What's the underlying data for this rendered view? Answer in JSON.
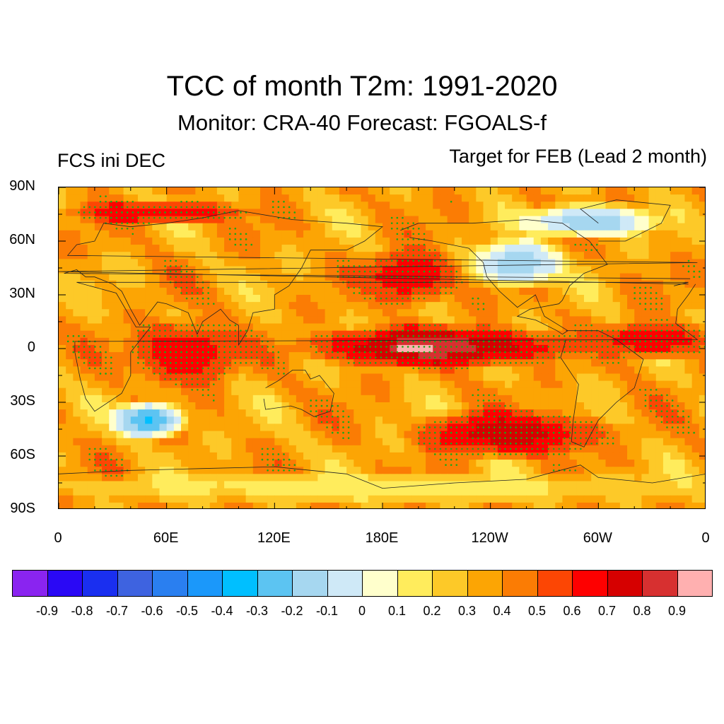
{
  "figure": {
    "title": "TCC of month T2m: 1991-2020",
    "subtitle": "Monitor: CRA-40   Forecast: FGOALS-f",
    "left_label": "FCS ini DEC",
    "right_label": "Target for FEB (Lead 2 month)"
  },
  "chart_data": {
    "type": "heatmap",
    "variable": "TCC of month T2m",
    "period": "1991-2020",
    "projection": "cylindrical equidistant",
    "lon_range": [
      0,
      360
    ],
    "lat_range": [
      -90,
      90
    ],
    "y_ticks": [
      "90N",
      "60N",
      "30N",
      "0",
      "30S",
      "60S",
      "90S"
    ],
    "x_ticks": [
      "0",
      "60E",
      "120E",
      "180E",
      "120W",
      "60W",
      "0"
    ],
    "colorbar": {
      "labels": [
        "-0.9",
        "-0.8",
        "-0.7",
        "-0.6",
        "-0.5",
        "-0.4",
        "-0.3",
        "-0.2",
        "-0.1",
        "0",
        "0.1",
        "0.2",
        "0.3",
        "0.4",
        "0.5",
        "0.6",
        "0.7",
        "0.8",
        "0.9"
      ],
      "colors": [
        "#8a24f0",
        "#2a08f5",
        "#1a2ff0",
        "#3e63e0",
        "#2a7ff0",
        "#1b98fa",
        "#00bfff",
        "#5cc4f2",
        "#a6d7f0",
        "#cfe9f7",
        "#ffffcc",
        "#ffec5c",
        "#fdc928",
        "#fca504",
        "#fb7c04",
        "#fc4604",
        "#fe0000",
        "#d60000",
        "#d73030",
        "#ffb0b0"
      ]
    },
    "stipple_color": "#1aa81a",
    "features": [
      {
        "region": "Tropical Pacific",
        "lon": [
          140,
          280
        ],
        "lat": [
          -10,
          12
        ],
        "value": 0.85
      },
      {
        "region": "Central equatorial Pacific",
        "lon": [
          185,
          210
        ],
        "lat": [
          -3,
          3
        ],
        "value": 0.95
      },
      {
        "region": "Tropical Atlantic",
        "lon": [
          300,
          360
        ],
        "lat": [
          -5,
          15
        ],
        "value": 0.7
      },
      {
        "region": "Indian Ocean",
        "lon": [
          40,
          100
        ],
        "lat": [
          -20,
          15
        ],
        "value": 0.7
      },
      {
        "region": "North Pacific",
        "lon": [
          170,
          220
        ],
        "lat": [
          25,
          55
        ],
        "value": 0.7
      },
      {
        "region": "South Pacific",
        "lon": [
          200,
          300
        ],
        "lat": [
          -60,
          -35
        ],
        "value": 0.75
      },
      {
        "region": "Arctic North Atlantic",
        "lon": [
          10,
          100
        ],
        "lat": [
          70,
          82
        ],
        "value": 0.7
      },
      {
        "region": "South Indian Ocean",
        "lon": [
          30,
          70
        ],
        "lat": [
          -50,
          -30
        ],
        "value": -0.3
      },
      {
        "region": "North America",
        "lon": [
          230,
          280
        ],
        "lat": [
          35,
          60
        ],
        "value": -0.2
      },
      {
        "region": "Greenland / Canadian Arctic",
        "lon": [
          260,
          330
        ],
        "lat": [
          62,
          80
        ],
        "value": -0.2
      },
      {
        "region": "Antarctica margin",
        "lon": [
          0,
          360
        ],
        "lat": [
          -85,
          -70
        ],
        "value": 0.15
      }
    ]
  }
}
